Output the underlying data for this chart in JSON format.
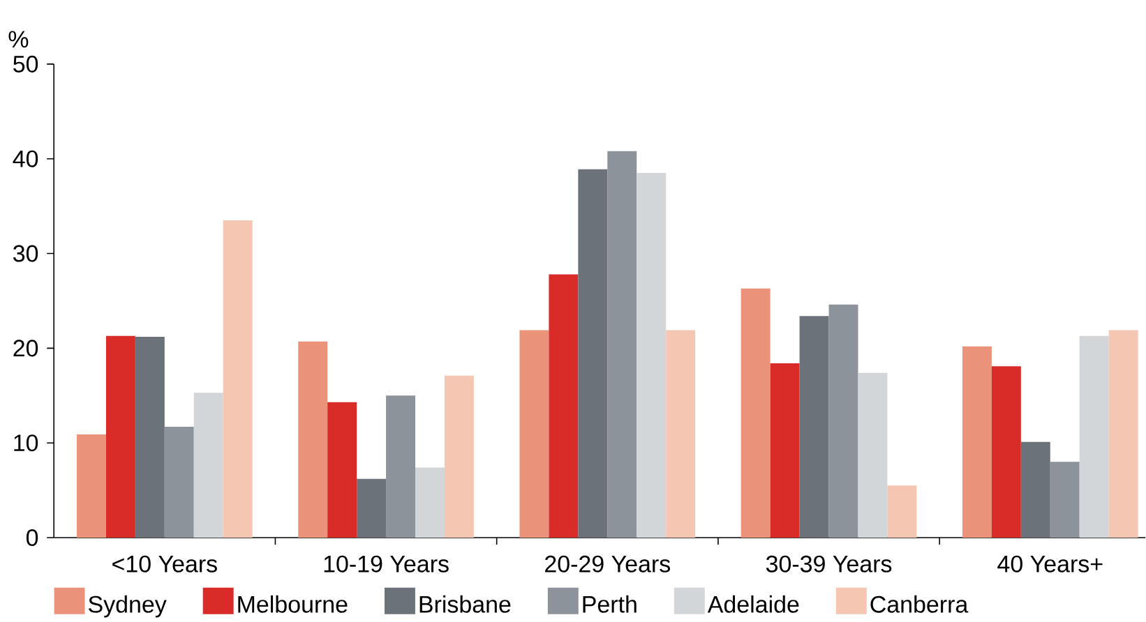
{
  "chart_data": {
    "type": "bar",
    "ylabel": "%",
    "categories": [
      "<10 Years",
      "10-19 Years",
      "20-29 Years",
      "30-39 Years",
      "40 Years+"
    ],
    "series": [
      {
        "name": "Sydney",
        "color": "#eb937a",
        "values": [
          10.9,
          20.7,
          21.9,
          26.3,
          20.2
        ]
      },
      {
        "name": "Melbourne",
        "color": "#d92b27",
        "values": [
          21.3,
          14.3,
          27.8,
          18.4,
          18.1
        ]
      },
      {
        "name": "Brisbane",
        "color": "#6b727a",
        "values": [
          21.2,
          6.2,
          38.9,
          23.4,
          10.1
        ]
      },
      {
        "name": "Perth",
        "color": "#8c939a",
        "values": [
          11.7,
          15.0,
          40.8,
          24.6,
          8.0
        ]
      },
      {
        "name": "Adelaide",
        "color": "#d3d6d9",
        "values": [
          15.3,
          7.4,
          38.5,
          17.4,
          21.3
        ]
      },
      {
        "name": "Canberra",
        "color": "#f5c6b2",
        "values": [
          33.5,
          17.1,
          21.9,
          5.5,
          21.9
        ]
      }
    ],
    "ylim": [
      0,
      50
    ],
    "yticks": [
      0,
      10,
      20,
      30,
      40,
      50
    ],
    "grid": false,
    "legend": "bottom"
  }
}
